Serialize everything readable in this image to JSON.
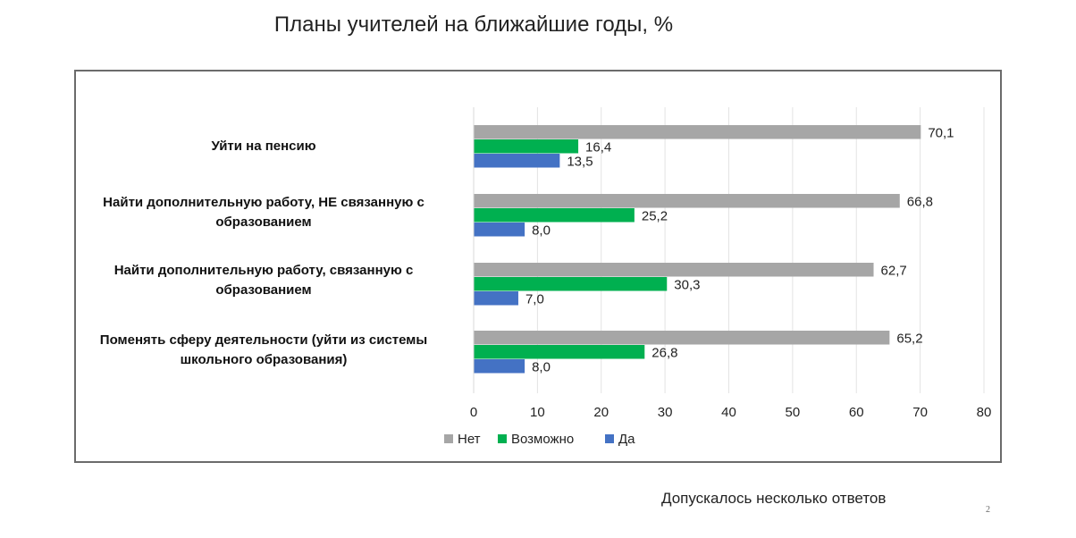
{
  "chart_data": {
    "type": "bar",
    "orientation": "horizontal",
    "title": "Планы учителей на ближайшие годы, %",
    "categories": [
      "Уйти на пенсию",
      "Найти дополнительную работу, НЕ связанную с образованием",
      "Найти дополнительную работу, связанную с образованием",
      "Поменять сферу деятельности (уйти из системы школьного образования)"
    ],
    "category_lines": [
      [
        "Уйти на пенсию"
      ],
      [
        "Найти дополнительную работу, НЕ связанную с",
        "образованием"
      ],
      [
        "Найти дополнительную работу, связанную с",
        "образованием"
      ],
      [
        "Поменять сферу деятельности (уйти из системы",
        "школьного образования)"
      ]
    ],
    "series": [
      {
        "name": "Нет",
        "color": "#a6a6a6",
        "values": [
          70.1,
          66.8,
          62.7,
          65.2
        ],
        "labels": [
          "70,1",
          "66,8",
          "62,7",
          "65,2"
        ]
      },
      {
        "name": "Возможно",
        "color": "#00b050",
        "values": [
          16.4,
          25.2,
          30.3,
          26.8
        ],
        "labels": [
          "16,4",
          "25,2",
          "30,3",
          "26,8"
        ]
      },
      {
        "name": "Да",
        "color": "#4472c4",
        "values": [
          13.5,
          8.0,
          7.0,
          8.0
        ],
        "labels": [
          "13,5",
          "8,0",
          "7,0",
          "8,0"
        ]
      }
    ],
    "xlabel": "",
    "ylabel": "",
    "xlim": [
      0,
      80
    ],
    "xticks": [
      0,
      10,
      20,
      30,
      40,
      50,
      60,
      70,
      80
    ],
    "grid": true,
    "legend": "bottom-left"
  },
  "footnote": "Допускалось несколько ответов",
  "page_number": "2"
}
